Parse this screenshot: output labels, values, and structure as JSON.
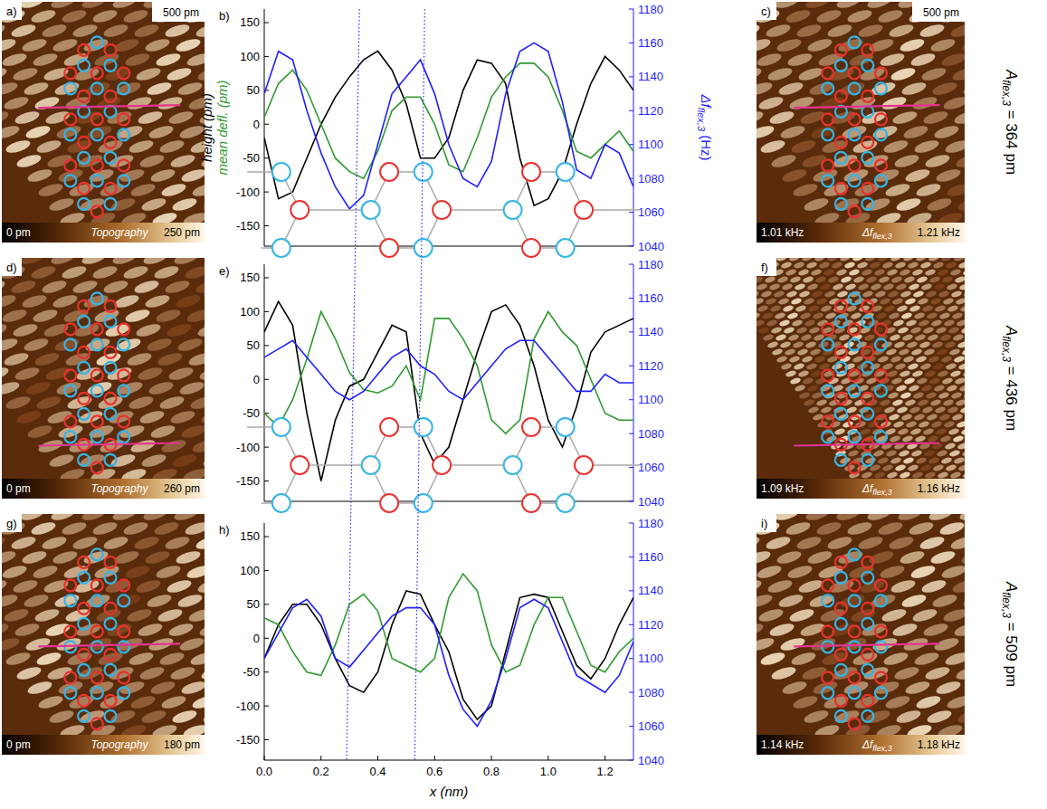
{
  "chart_data": [
    {
      "type": "line",
      "panel": "b)",
      "x": [
        0,
        0.05,
        0.1,
        0.15,
        0.2,
        0.25,
        0.3,
        0.35,
        0.4,
        0.45,
        0.5,
        0.55,
        0.6,
        0.65,
        0.7,
        0.75,
        0.8,
        0.85,
        0.9,
        0.95,
        1.0,
        1.05,
        1.1,
        1.15,
        1.2,
        1.25,
        1.3
      ],
      "xlim": [
        0,
        1.3
      ],
      "ylim": [
        -180,
        170
      ],
      "yticks": [
        -150,
        -100,
        -50,
        0,
        50,
        100,
        150
      ],
      "y2lim": [
        1040,
        1180
      ],
      "y2ticks": [
        1040,
        1060,
        1080,
        1100,
        1120,
        1140,
        1160,
        1180
      ],
      "tick_labels": "y",
      "series": [
        {
          "name": "height (pm)",
          "color": "#000000",
          "values": [
            -20,
            -110,
            -100,
            -50,
            0,
            40,
            70,
            95,
            108,
            80,
            30,
            -50,
            -50,
            -20,
            50,
            95,
            90,
            60,
            -50,
            -120,
            -110,
            -70,
            0,
            60,
            100,
            80,
            50
          ]
        },
        {
          "name": "mean defl. (pm)",
          "color": "#2e9a2e",
          "values": [
            10,
            60,
            80,
            50,
            0,
            -50,
            -70,
            -80,
            -40,
            20,
            40,
            40,
            0,
            -60,
            -70,
            -20,
            40,
            70,
            90,
            90,
            70,
            20,
            -40,
            -50,
            -30,
            -10,
            -40
          ]
        },
        {
          "name": "Δf",
          "name_subscript": "flex,3",
          "name_suffix": " (Hz)",
          "color": "#1f1fff",
          "axis": "y2",
          "values": [
            1130,
            1155,
            1150,
            1120,
            1095,
            1075,
            1062,
            1070,
            1100,
            1130,
            1140,
            1150,
            1130,
            1100,
            1080,
            1075,
            1090,
            1130,
            1155,
            1160,
            1155,
            1125,
            1085,
            1080,
            1100,
            1095,
            1075
          ]
        }
      ]
    },
    {
      "type": "line",
      "panel": "e)",
      "x": [
        0,
        0.05,
        0.1,
        0.15,
        0.2,
        0.25,
        0.3,
        0.35,
        0.4,
        0.45,
        0.5,
        0.55,
        0.6,
        0.65,
        0.7,
        0.75,
        0.8,
        0.85,
        0.9,
        0.95,
        1.0,
        1.05,
        1.1,
        1.15,
        1.2,
        1.25,
        1.3
      ],
      "xlim": [
        0,
        1.3
      ],
      "ylim": [
        -180,
        170
      ],
      "yticks": [
        -150,
        -100,
        -50,
        0,
        50,
        100,
        150
      ],
      "y2lim": [
        1040,
        1180
      ],
      "y2ticks": [
        1040,
        1060,
        1080,
        1100,
        1120,
        1140,
        1160,
        1180
      ],
      "tick_labels": "y",
      "series": [
        {
          "color": "#000000",
          "values": [
            70,
            115,
            80,
            -50,
            -150,
            -60,
            -10,
            0,
            40,
            80,
            70,
            -80,
            -125,
            -100,
            -30,
            40,
            100,
            110,
            80,
            20,
            -60,
            -100,
            -40,
            40,
            70,
            80,
            90
          ]
        },
        {
          "color": "#2e9a2e",
          "values": [
            -50,
            -70,
            -30,
            30,
            100,
            60,
            10,
            -15,
            -20,
            -10,
            20,
            -30,
            90,
            90,
            60,
            20,
            -60,
            -80,
            -60,
            60,
            100,
            70,
            50,
            0,
            -50,
            -60,
            -60
          ]
        },
        {
          "color": "#1f1fff",
          "axis": "y2",
          "values": [
            1125,
            1130,
            1135,
            1125,
            1115,
            1105,
            1100,
            1105,
            1115,
            1125,
            1130,
            1120,
            1115,
            1105,
            1100,
            1110,
            1120,
            1130,
            1135,
            1135,
            1125,
            1115,
            1105,
            1105,
            1115,
            1110,
            1110
          ]
        }
      ]
    },
    {
      "type": "line",
      "panel": "h)",
      "x": [
        0,
        0.05,
        0.1,
        0.15,
        0.2,
        0.25,
        0.3,
        0.35,
        0.4,
        0.45,
        0.5,
        0.55,
        0.6,
        0.65,
        0.7,
        0.75,
        0.8,
        0.85,
        0.9,
        0.95,
        1.0,
        1.05,
        1.1,
        1.15,
        1.2,
        1.25,
        1.3
      ],
      "xlim": [
        0,
        1.3
      ],
      "xticks": [
        {
          "value": 0,
          "label": "0.0"
        },
        0.2,
        0.4,
        0.6,
        0.8,
        {
          "value": 1,
          "label": "1.0"
        },
        1.2
      ],
      "x_label": "x (nm)",
      "ylim": [
        -180,
        170
      ],
      "yticks": [
        -150,
        -100,
        -50,
        0,
        50,
        100,
        150
      ],
      "y2lim": [
        1040,
        1180
      ],
      "y2ticks": [
        1040,
        1060,
        1080,
        1100,
        1120,
        1140,
        1160,
        1180
      ],
      "series": [
        {
          "color": "#000000",
          "values": [
            -30,
            20,
            50,
            50,
            20,
            -30,
            -70,
            -80,
            -50,
            20,
            70,
            65,
            20,
            -20,
            -90,
            -120,
            -100,
            -20,
            60,
            65,
            60,
            10,
            -40,
            -60,
            -30,
            20,
            60
          ]
        },
        {
          "color": "#2e9a2e",
          "values": [
            30,
            20,
            -20,
            -50,
            -55,
            -10,
            50,
            65,
            40,
            -30,
            -40,
            -50,
            -30,
            60,
            95,
            70,
            -10,
            -50,
            -40,
            20,
            60,
            60,
            10,
            -40,
            -50,
            -20,
            0
          ]
        },
        {
          "color": "#1f1fff",
          "axis": "y2",
          "values": [
            1100,
            1115,
            1130,
            1135,
            1125,
            1100,
            1095,
            1105,
            1115,
            1125,
            1130,
            1130,
            1120,
            1090,
            1070,
            1060,
            1075,
            1100,
            1130,
            1135,
            1130,
            1110,
            1090,
            1085,
            1080,
            1090,
            1110
          ]
        }
      ]
    }
  ],
  "guide_lines": [
    {
      "x_top": 0.335,
      "x_bottom": 0.29
    },
    {
      "x_top": 0.565,
      "x_bottom": 0.53
    }
  ],
  "images": [
    {
      "letter": "a)",
      "scale_label": "500 pm",
      "colorbar": {
        "min_label": "0 pm",
        "title": "Topography",
        "max_label": "250 pm"
      }
    },
    {
      "letter": "c)",
      "scale_label": "500 pm",
      "colorbar": {
        "min_label": "1.01 kHz",
        "title": "Δf",
        "title_subscript": "flex,3",
        "max_label": "1.21 kHz"
      }
    },
    {
      "letter": "d)",
      "colorbar": {
        "min_label": "0 pm",
        "title": "Topography",
        "max_label": "260 pm"
      }
    },
    {
      "letter": "f)",
      "colorbar": {
        "min_label": "1.09 kHz",
        "title": "Δf",
        "title_subscript": "flex,3",
        "max_label": "1.16 kHz"
      }
    },
    {
      "letter": "g)",
      "colorbar": {
        "min_label": "0 pm",
        "title": "Topography",
        "max_label": "180 pm"
      }
    },
    {
      "letter": "i)",
      "colorbar": {
        "min_label": "1.14 kHz",
        "title": "Δf",
        "title_subscript": "flex,3",
        "max_label": "1.18 kHz"
      }
    }
  ],
  "amplitudes": [
    {
      "symbol": "A",
      "subscript": "flex,3",
      "text": " =  364 pm"
    },
    {
      "symbol": "A",
      "subscript": "flex,3",
      "text": " =  436 pm"
    },
    {
      "symbol": "A",
      "subscript": "flex,3",
      "text": " =  509 pm"
    }
  ]
}
